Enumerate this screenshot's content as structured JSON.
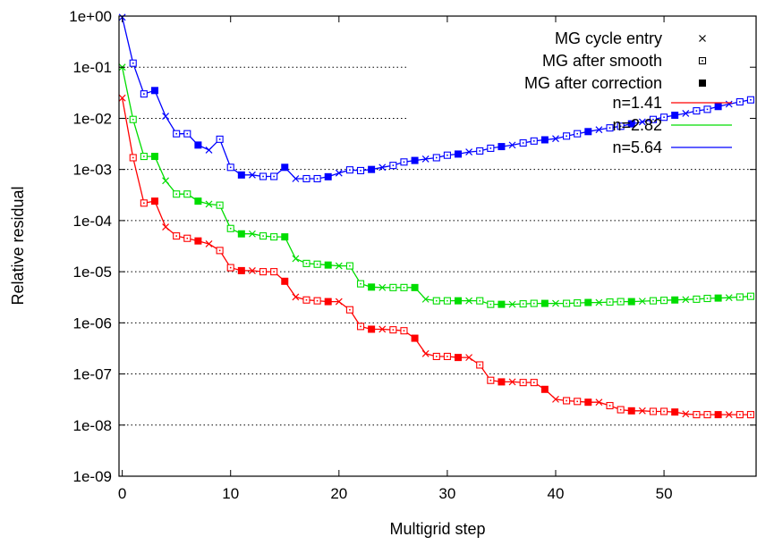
{
  "chart_data": {
    "type": "line",
    "title": "",
    "xlabel": "Multigrid step",
    "ylabel": "Relative residual",
    "x_scale": "linear",
    "y_scale": "log",
    "xlim": [
      -0.3,
      58.5
    ],
    "ylim": [
      1e-09,
      1
    ],
    "xticks": [
      0,
      10,
      20,
      30,
      40,
      50
    ],
    "xtick_labels": [
      "0",
      "10",
      "20",
      "30",
      "40",
      "50"
    ],
    "yticks": [
      1e-09,
      1e-08,
      1e-07,
      1e-06,
      1e-05,
      0.0001,
      0.001,
      0.01,
      0.1,
      1
    ],
    "ytick_labels": [
      "1e-09",
      "1e-08",
      "1e-07",
      "1e-06",
      "1e-05",
      "1e-04",
      "1e-03",
      "1e-02",
      "1e-01",
      "1e+00"
    ],
    "grid": true,
    "legend_position": "top-right",
    "marker_legend": [
      {
        "label": "MG cycle entry",
        "marker": "cross"
      },
      {
        "label": "MG after smooth",
        "marker": "open-square"
      },
      {
        "label": "MG after correction",
        "marker": "filled-square"
      }
    ],
    "series": [
      {
        "name": "n=1.41",
        "color": "#ff0000",
        "x": [
          0,
          1,
          2,
          3,
          4,
          5,
          6,
          7,
          8,
          9,
          10,
          11,
          12,
          13,
          14,
          15,
          16,
          17,
          18,
          19,
          20,
          21,
          22,
          23,
          24,
          25,
          26,
          27,
          28,
          29,
          30,
          31,
          32,
          33,
          34,
          35,
          36,
          37,
          38,
          39,
          40,
          41,
          42,
          43,
          44,
          45,
          46,
          47,
          48,
          49,
          50,
          51,
          52,
          53,
          54,
          55,
          56,
          57,
          58
        ],
        "y": [
          0.025,
          0.0017,
          0.00022,
          0.00024,
          7.5e-05,
          5e-05,
          4.5e-05,
          4e-05,
          3.5e-05,
          2.6e-05,
          1.2e-05,
          1.05e-05,
          1.05e-05,
          1e-05,
          1e-05,
          6.5e-06,
          3.2e-06,
          2.8e-06,
          2.7e-06,
          2.6e-06,
          2.6e-06,
          1.8e-06,
          8.5e-07,
          7.5e-07,
          7.5e-07,
          7.3e-07,
          7e-07,
          5e-07,
          2.5e-07,
          2.2e-07,
          2.2e-07,
          2.1e-07,
          2.1e-07,
          1.5e-07,
          7.5e-08,
          7e-08,
          7e-08,
          6.8e-08,
          6.8e-08,
          5e-08,
          3.2e-08,
          3e-08,
          2.9e-08,
          2.8e-08,
          2.8e-08,
          2.4e-08,
          2e-08,
          1.9e-08,
          1.9e-08,
          1.85e-08,
          1.85e-08,
          1.8e-08,
          1.65e-08,
          1.6e-08,
          1.6e-08,
          1.6e-08,
          1.6e-08,
          1.6e-08,
          1.6e-08
        ]
      },
      {
        "name": "n=2.82",
        "color": "#00dd00",
        "x": [
          0,
          1,
          2,
          3,
          4,
          5,
          6,
          7,
          8,
          9,
          10,
          11,
          12,
          13,
          14,
          15,
          16,
          17,
          18,
          19,
          20,
          21,
          22,
          23,
          24,
          25,
          26,
          27,
          28,
          29,
          30,
          31,
          32,
          33,
          34,
          35,
          36,
          37,
          38,
          39,
          40,
          41,
          42,
          43,
          44,
          45,
          46,
          47,
          48,
          49,
          50,
          51,
          52,
          53,
          54,
          55,
          56,
          57,
          58
        ],
        "y": [
          0.1,
          0.0095,
          0.0018,
          0.0018,
          0.0006,
          0.00033,
          0.00033,
          0.00024,
          0.00021,
          0.0002,
          7e-05,
          5.5e-05,
          5.5e-05,
          5e-05,
          4.8e-05,
          4.8e-05,
          1.8e-05,
          1.45e-05,
          1.4e-05,
          1.35e-05,
          1.3e-05,
          1.3e-05,
          5.8e-06,
          5e-06,
          4.9e-06,
          4.9e-06,
          4.9e-06,
          4.9e-06,
          2.9e-06,
          2.7e-06,
          2.7e-06,
          2.7e-06,
          2.7e-06,
          2.7e-06,
          2.3e-06,
          2.3e-06,
          2.3e-06,
          2.35e-06,
          2.4e-06,
          2.4e-06,
          2.4e-06,
          2.4e-06,
          2.45e-06,
          2.5e-06,
          2.5e-06,
          2.55e-06,
          2.6e-06,
          2.6e-06,
          2.65e-06,
          2.7e-06,
          2.75e-06,
          2.8e-06,
          2.85e-06,
          2.9e-06,
          3e-06,
          3.05e-06,
          3.1e-06,
          3.2e-06,
          3.3e-06
        ]
      },
      {
        "name": "n=5.64",
        "color": "#0000ff",
        "x": [
          0,
          1,
          2,
          3,
          4,
          5,
          6,
          7,
          8,
          9,
          10,
          11,
          12,
          13,
          14,
          15,
          16,
          17,
          18,
          19,
          20,
          21,
          22,
          23,
          24,
          25,
          26,
          27,
          28,
          29,
          30,
          31,
          32,
          33,
          34,
          35,
          36,
          37,
          38,
          39,
          40,
          41,
          42,
          43,
          44,
          45,
          46,
          47,
          48,
          49,
          50,
          51,
          52,
          53,
          54,
          55,
          56,
          57,
          58
        ],
        "y": [
          0.95,
          0.12,
          0.03,
          0.035,
          0.011,
          0.005,
          0.005,
          0.003,
          0.0024,
          0.0039,
          0.0011,
          0.00078,
          0.00078,
          0.00073,
          0.00073,
          0.0011,
          0.00066,
          0.00066,
          0.00066,
          0.00072,
          0.00085,
          0.00098,
          0.00095,
          0.001,
          0.0011,
          0.0012,
          0.0014,
          0.0015,
          0.0016,
          0.0017,
          0.0019,
          0.002,
          0.0022,
          0.0023,
          0.0026,
          0.0028,
          0.003,
          0.0033,
          0.0036,
          0.0038,
          0.004,
          0.0045,
          0.005,
          0.0055,
          0.006,
          0.0065,
          0.007,
          0.0078,
          0.0085,
          0.0095,
          0.0105,
          0.0115,
          0.0125,
          0.014,
          0.015,
          0.017,
          0.019,
          0.021,
          0.023
        ]
      }
    ]
  }
}
